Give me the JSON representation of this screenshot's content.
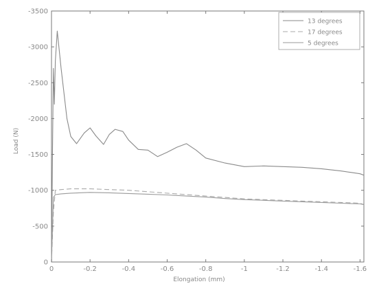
{
  "chart_data": {
    "type": "line",
    "title": "",
    "xlabel": "Elongation (mm)",
    "ylabel": "Load (N)",
    "xlim": [
      0,
      1.62
    ],
    "ylim": [
      0,
      -3500
    ],
    "x_ticks": [
      0,
      -0.2,
      -0.4,
      -0.6,
      -0.8,
      -1,
      -1.2,
      -1.4,
      -1.6
    ],
    "x_tick_labels": [
      "0",
      "-0.2",
      "-0.4",
      "-0.6",
      "-0.8",
      "-1",
      "-1.2",
      "-1.4",
      "-1.6"
    ],
    "y_ticks": [
      0,
      -500,
      -1000,
      -1500,
      -2000,
      -2500,
      -3000,
      -3500
    ],
    "y_tick_labels": [
      "0",
      "-500",
      "-1000",
      "-1500",
      "-2000",
      "-2500",
      "-3000",
      "-3500"
    ],
    "grid": false,
    "legend_position": "top-right",
    "series": [
      {
        "name": "13 degrees",
        "color": "#8a8a8a",
        "dash": "solid",
        "x": [
          0,
          0.005,
          0.01,
          0.015,
          0.02,
          0.03,
          0.05,
          0.08,
          0.1,
          0.13,
          0.17,
          0.2,
          0.23,
          0.27,
          0.3,
          0.33,
          0.37,
          0.4,
          0.45,
          0.5,
          0.55,
          0.6,
          0.65,
          0.7,
          0.75,
          0.8,
          0.9,
          1.0,
          1.1,
          1.2,
          1.3,
          1.4,
          1.5,
          1.55,
          1.6,
          1.62
        ],
        "values": [
          0,
          -1500,
          -2700,
          -2200,
          -2800,
          -3220,
          -2700,
          -2000,
          -1750,
          -1650,
          -1800,
          -1870,
          -1760,
          -1640,
          -1780,
          -1850,
          -1820,
          -1700,
          -1570,
          -1560,
          -1470,
          -1530,
          -1600,
          -1650,
          -1560,
          -1450,
          -1380,
          -1330,
          -1340,
          -1330,
          -1320,
          -1300,
          -1270,
          -1250,
          -1230,
          -1210
        ]
      },
      {
        "name": "17 degrees",
        "color": "#aaaaaa",
        "dash": "dashed",
        "x": [
          0,
          0.01,
          0.02,
          0.05,
          0.1,
          0.2,
          0.3,
          0.4,
          0.5,
          0.6,
          0.7,
          0.8,
          0.9,
          1.0,
          1.1,
          1.2,
          1.3,
          1.4,
          1.5,
          1.6,
          1.62
        ],
        "values": [
          0,
          -700,
          -1000,
          -1010,
          -1020,
          -1020,
          -1010,
          -1000,
          -980,
          -960,
          -940,
          -920,
          -900,
          -880,
          -870,
          -860,
          -850,
          -840,
          -830,
          -820,
          -800
        ]
      },
      {
        "name": "5 degrees",
        "color": "#9a9a9a",
        "dash": "solid",
        "x": [
          0,
          0.01,
          0.02,
          0.05,
          0.1,
          0.2,
          0.3,
          0.4,
          0.5,
          0.6,
          0.7,
          0.8,
          0.9,
          1.0,
          1.1,
          1.2,
          1.3,
          1.4,
          1.5,
          1.6,
          1.62
        ],
        "values": [
          0,
          -900,
          -940,
          -950,
          -960,
          -970,
          -965,
          -955,
          -945,
          -935,
          -920,
          -905,
          -885,
          -870,
          -860,
          -850,
          -840,
          -830,
          -820,
          -810,
          -800
        ]
      }
    ]
  }
}
